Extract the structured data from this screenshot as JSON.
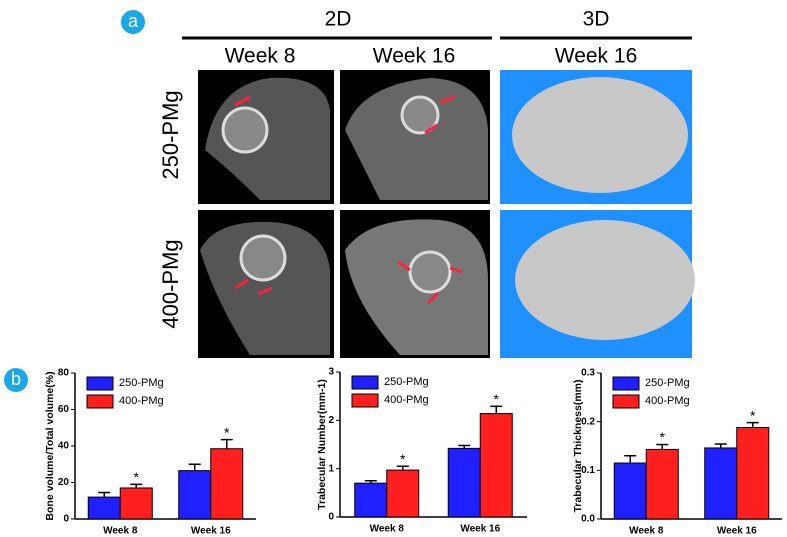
{
  "panel_a": {
    "label": "a",
    "group_2d": "2D",
    "group_3d": "3D",
    "columns": [
      "Week 8",
      "Week 16",
      "Week 16"
    ],
    "rows": [
      "250-PMg",
      "400-PMg"
    ]
  },
  "panel_b": {
    "label": "b"
  },
  "chart_data": [
    {
      "type": "bar",
      "y_label": "Bone volume/Total volume(%)",
      "categories": [
        "Week 8",
        "Week 16"
      ],
      "series": [
        {
          "name": "250-PMg",
          "color": "#1f1fff",
          "values": [
            12,
            26.5
          ],
          "errors": [
            2.5,
            3.5
          ]
        },
        {
          "name": "400-PMg",
          "color": "#ff1f1f",
          "values": [
            17,
            38.5
          ],
          "errors": [
            2,
            5
          ],
          "significance": [
            "*",
            "*"
          ]
        }
      ],
      "ylim": [
        0,
        80
      ],
      "yticks": [
        0,
        20,
        40,
        60,
        80
      ],
      "legend": "top-left"
    },
    {
      "type": "bar",
      "y_label": "Trabecular Number(mm-1)",
      "categories": [
        "Week 8",
        "Week 16"
      ],
      "series": [
        {
          "name": "250-PMg",
          "color": "#1f1fff",
          "values": [
            0.7,
            1.42
          ],
          "errors": [
            0.05,
            0.06
          ]
        },
        {
          "name": "400-PMg",
          "color": "#ff1f1f",
          "values": [
            0.97,
            2.14
          ],
          "errors": [
            0.08,
            0.15
          ],
          "significance": [
            "*",
            "*"
          ]
        }
      ],
      "ylim": [
        0,
        3
      ],
      "yticks": [
        0,
        1,
        2,
        3
      ],
      "legend": "top-left"
    },
    {
      "type": "bar",
      "y_label": "Trabecular Thickness(mm)",
      "categories": [
        "Week 8",
        "Week 16"
      ],
      "series": [
        {
          "name": "250-PMg",
          "color": "#1f1fff",
          "values": [
            0.115,
            0.146
          ],
          "errors": [
            0.015,
            0.008
          ]
        },
        {
          "name": "400-PMg",
          "color": "#ff1f1f",
          "values": [
            0.143,
            0.188
          ],
          "errors": [
            0.01,
            0.01
          ],
          "significance": [
            "*",
            "*"
          ]
        }
      ],
      "ylim": [
        0,
        0.3
      ],
      "yticks": [
        {
          "value": 0,
          "label": "0.0"
        },
        0.1,
        0.2,
        0.3
      ],
      "legend": "top-left"
    }
  ]
}
